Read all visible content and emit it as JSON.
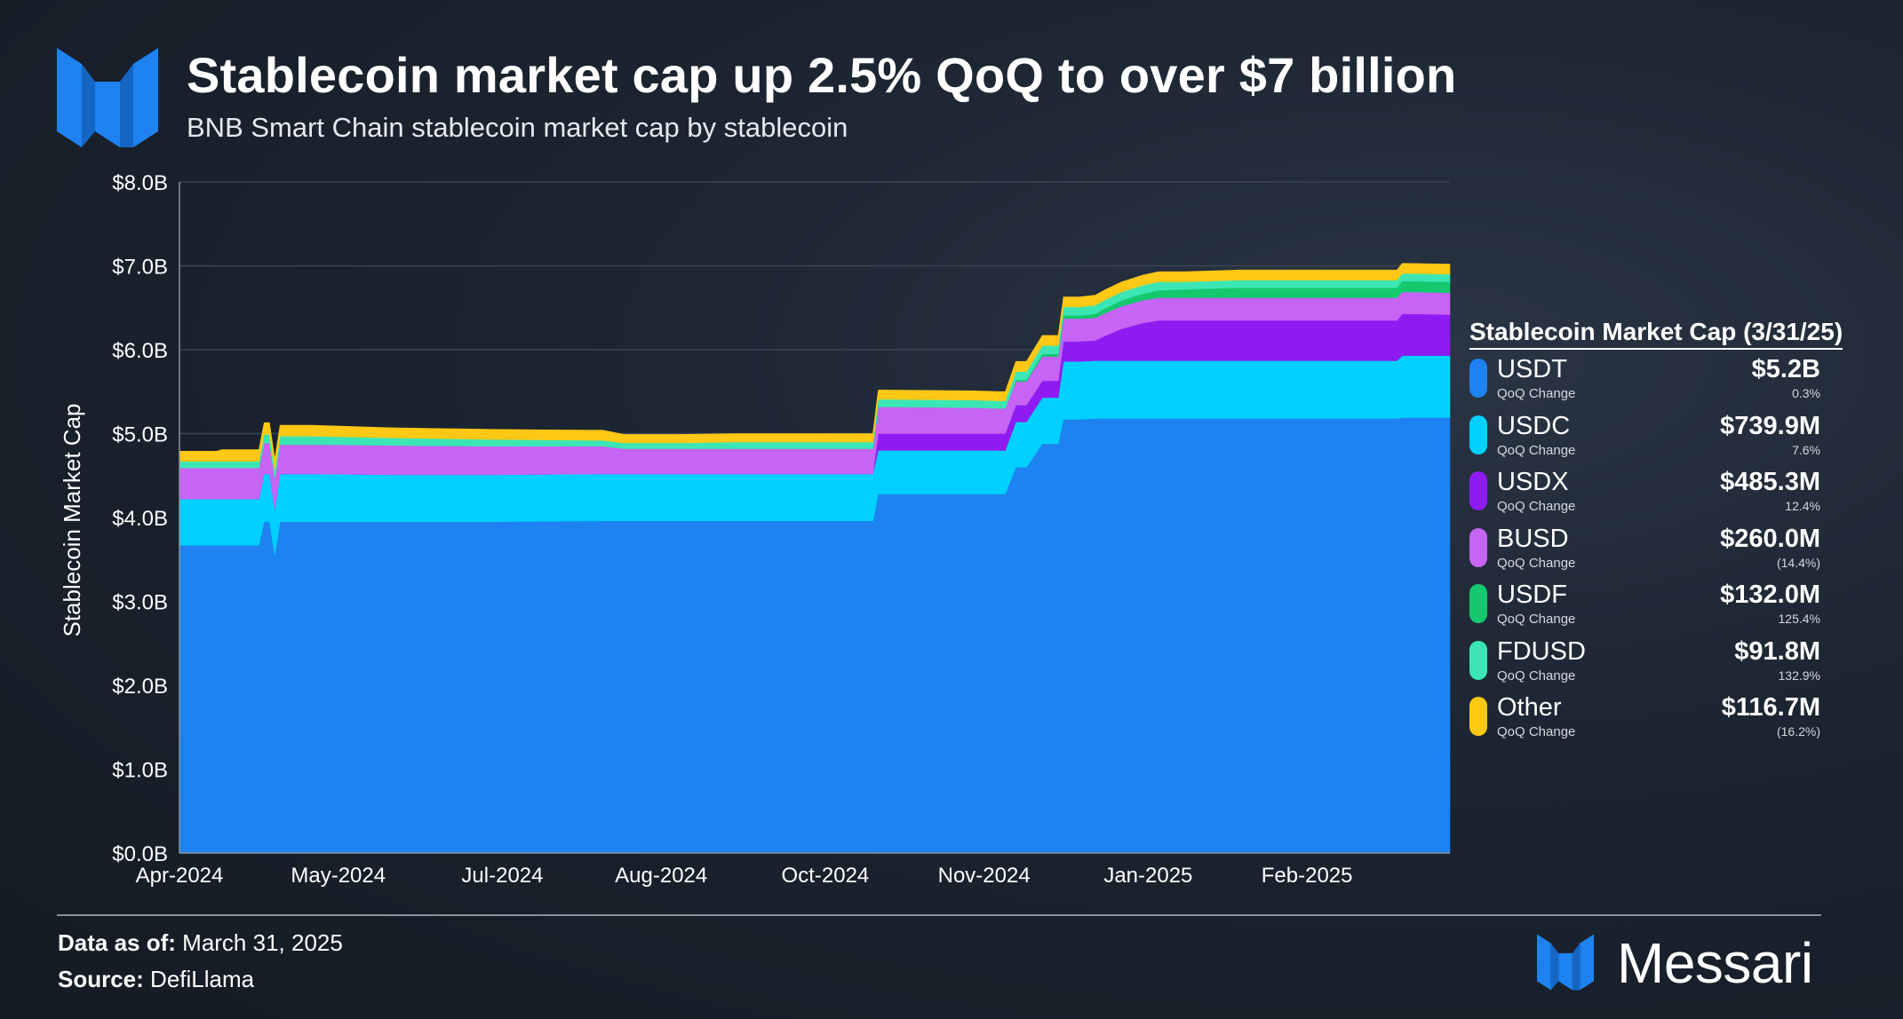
{
  "header": {
    "title": "Stablecoin market cap up 2.5% QoQ to over $7 billion",
    "subtitle": "BNB Smart Chain stablecoin market cap by stablecoin"
  },
  "chart_data": {
    "type": "area",
    "title": "Stablecoin market cap up 2.5% QoQ to over $7 billion",
    "subtitle": "BNB Smart Chain stablecoin market cap by stablecoin",
    "xlabel": "",
    "ylabel": "Stablecoin Market Cap",
    "ylim": [
      0,
      8
    ],
    "y_ticks": [
      "$0.0B",
      "$1.0B",
      "$2.0B",
      "$3.0B",
      "$4.0B",
      "$5.0B",
      "$6.0B",
      "$7.0B",
      "$8.0B"
    ],
    "x_ticks": [
      {
        "label": "Apr-2024",
        "x": 0
      },
      {
        "label": "May-2024",
        "x": 30
      },
      {
        "label": "Jul-2024",
        "x": 61
      },
      {
        "label": "Aug-2024",
        "x": 91
      },
      {
        "label": "Oct-2024",
        "x": 122
      },
      {
        "label": "Nov-2024",
        "x": 152
      },
      {
        "label": "Jan-2025",
        "x": 183
      },
      {
        "label": "Feb-2025",
        "x": 213
      }
    ],
    "x_range": [
      0,
      240
    ],
    "x": [
      0,
      7,
      8,
      15,
      16,
      17,
      18,
      19,
      25,
      40,
      60,
      80,
      84,
      85,
      95,
      105,
      110,
      120,
      131,
      132,
      133,
      150,
      155,
      156,
      158,
      160,
      163,
      165,
      166,
      167,
      170,
      173,
      175,
      178,
      182,
      185,
      190,
      195,
      200,
      210,
      220,
      230,
      231,
      240
    ],
    "series": [
      {
        "name": "USDT",
        "color": "#1e82f0",
        "values": [
          3.67,
          3.67,
          3.67,
          3.67,
          3.95,
          3.95,
          3.55,
          3.95,
          3.95,
          3.95,
          3.95,
          3.96,
          3.96,
          3.96,
          3.96,
          3.96,
          3.96,
          3.96,
          3.96,
          4.28,
          4.28,
          4.28,
          4.28,
          4.28,
          4.6,
          4.6,
          4.88,
          4.88,
          4.88,
          5.17,
          5.17,
          5.18,
          5.18,
          5.18,
          5.18,
          5.18,
          5.18,
          5.18,
          5.18,
          5.18,
          5.18,
          5.18,
          5.19,
          5.19
        ]
      },
      {
        "name": "USDC",
        "color": "#00d0ff",
        "values": [
          0.55,
          0.55,
          0.55,
          0.55,
          0.57,
          0.57,
          0.55,
          0.57,
          0.57,
          0.56,
          0.56,
          0.56,
          0.56,
          0.56,
          0.56,
          0.56,
          0.56,
          0.56,
          0.56,
          0.52,
          0.52,
          0.52,
          0.52,
          0.52,
          0.54,
          0.54,
          0.55,
          0.55,
          0.55,
          0.69,
          0.69,
          0.69,
          0.69,
          0.69,
          0.69,
          0.69,
          0.69,
          0.69,
          0.69,
          0.69,
          0.69,
          0.69,
          0.74,
          0.74
        ]
      },
      {
        "name": "USDX",
        "color": "#8e1cf0",
        "values": [
          0.0,
          0.0,
          0.0,
          0.0,
          0.0,
          0.0,
          0.0,
          0.0,
          0.0,
          0.0,
          0.0,
          0.0,
          0.0,
          0.0,
          0.0,
          0.0,
          0.0,
          0.0,
          0.0,
          0.2,
          0.2,
          0.2,
          0.2,
          0.2,
          0.2,
          0.2,
          0.2,
          0.2,
          0.2,
          0.24,
          0.24,
          0.24,
          0.3,
          0.38,
          0.45,
          0.48,
          0.48,
          0.48,
          0.48,
          0.48,
          0.48,
          0.48,
          0.5,
          0.49
        ]
      },
      {
        "name": "BUSD",
        "color": "#c664f4",
        "values": [
          0.37,
          0.37,
          0.37,
          0.37,
          0.37,
          0.37,
          0.37,
          0.35,
          0.35,
          0.35,
          0.34,
          0.33,
          0.3,
          0.3,
          0.3,
          0.3,
          0.3,
          0.3,
          0.3,
          0.32,
          0.32,
          0.31,
          0.3,
          0.3,
          0.28,
          0.28,
          0.29,
          0.29,
          0.29,
          0.27,
          0.27,
          0.27,
          0.27,
          0.27,
          0.27,
          0.27,
          0.27,
          0.27,
          0.27,
          0.27,
          0.27,
          0.27,
          0.26,
          0.26
        ]
      },
      {
        "name": "USDF",
        "color": "#14c86e",
        "values": [
          0.0,
          0.0,
          0.0,
          0.0,
          0.0,
          0.0,
          0.0,
          0.0,
          0.0,
          0.0,
          0.0,
          0.0,
          0.0,
          0.0,
          0.0,
          0.0,
          0.0,
          0.0,
          0.0,
          0.0,
          0.0,
          0.0,
          0.0,
          0.0,
          0.02,
          0.02,
          0.03,
          0.03,
          0.03,
          0.04,
          0.04,
          0.05,
          0.06,
          0.07,
          0.08,
          0.09,
          0.1,
          0.11,
          0.12,
          0.12,
          0.12,
          0.12,
          0.13,
          0.13
        ]
      },
      {
        "name": "FDUSD",
        "color": "#3ce6b4",
        "values": [
          0.08,
          0.08,
          0.08,
          0.08,
          0.1,
          0.1,
          0.1,
          0.1,
          0.1,
          0.09,
          0.08,
          0.07,
          0.07,
          0.07,
          0.07,
          0.08,
          0.08,
          0.08,
          0.08,
          0.09,
          0.09,
          0.09,
          0.09,
          0.09,
          0.1,
          0.1,
          0.1,
          0.1,
          0.1,
          0.1,
          0.1,
          0.1,
          0.1,
          0.1,
          0.1,
          0.1,
          0.09,
          0.09,
          0.09,
          0.09,
          0.09,
          0.09,
          0.09,
          0.09
        ]
      },
      {
        "name": "Other",
        "color": "#ffc814",
        "values": [
          0.12,
          0.12,
          0.14,
          0.14,
          0.14,
          0.14,
          0.13,
          0.13,
          0.13,
          0.12,
          0.12,
          0.12,
          0.1,
          0.1,
          0.1,
          0.1,
          0.1,
          0.1,
          0.1,
          0.11,
          0.11,
          0.11,
          0.11,
          0.11,
          0.12,
          0.12,
          0.12,
          0.12,
          0.12,
          0.12,
          0.12,
          0.12,
          0.12,
          0.12,
          0.12,
          0.12,
          0.12,
          0.12,
          0.12,
          0.12,
          0.12,
          0.12,
          0.12,
          0.12
        ]
      }
    ]
  },
  "legend": {
    "title": "Stablecoin Market Cap (3/31/25)",
    "items": [
      {
        "name": "USDT",
        "sub": "QoQ Change",
        "value": "$5.2B",
        "change": "0.3%",
        "color": "#1e82f0"
      },
      {
        "name": "USDC",
        "sub": "QoQ Change",
        "value": "$739.9M",
        "change": "7.6%",
        "color": "#00d0ff"
      },
      {
        "name": "USDX",
        "sub": "QoQ Change",
        "value": "$485.3M",
        "change": "12.4%",
        "color": "#8e1cf0"
      },
      {
        "name": "BUSD",
        "sub": "QoQ Change",
        "value": "$260.0M",
        "change": "(14.4%)",
        "color": "#c664f4"
      },
      {
        "name": "USDF",
        "sub": "QoQ Change",
        "value": "$132.0M",
        "change": "125.4%",
        "color": "#14c86e"
      },
      {
        "name": "FDUSD",
        "sub": "QoQ Change",
        "value": "$91.8M",
        "change": "132.9%",
        "color": "#3ce6b4"
      },
      {
        "name": "Other",
        "sub": "QoQ Change",
        "value": "$116.7M",
        "change": "(16.2%)",
        "color": "#ffc814"
      }
    ]
  },
  "footer": {
    "data_label": "Data as of:",
    "data_value": "March 31, 2025",
    "source_label": "Source:",
    "source_value": "DefiLlama",
    "brand": "Messari"
  },
  "icons": {
    "logo": "messari-logo-icon",
    "brand_mark": "messari-mark-icon"
  },
  "colors": {
    "accent": "#1e82f0",
    "brand_blue": "#1e82f0"
  }
}
